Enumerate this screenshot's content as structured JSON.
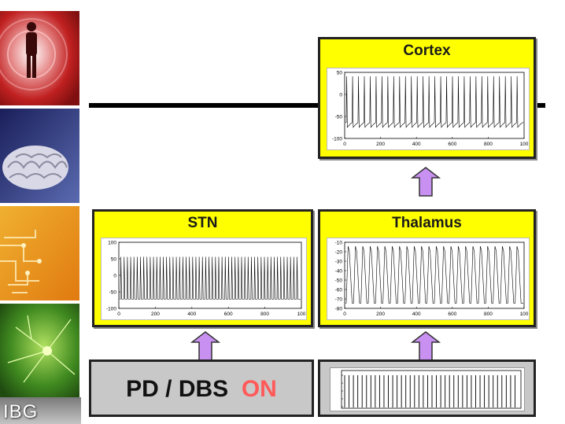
{
  "logo": "IBG",
  "tiles": [
    "person-silhouette",
    "brain",
    "circuit-board",
    "neuron"
  ],
  "boxes": {
    "cortex": {
      "title": "Cortex",
      "yticks": [
        "50",
        "0",
        "-50",
        "-100"
      ],
      "xticks": [
        "0",
        "200",
        "400",
        "600",
        "800",
        "100"
      ]
    },
    "stn": {
      "title": "STN",
      "yticks": [
        "100",
        "50",
        "0",
        "-50",
        "-100"
      ],
      "xticks": [
        "0",
        "200",
        "400",
        "600",
        "800",
        "100"
      ]
    },
    "thalamus": {
      "title": "Thalamus",
      "yticks": [
        "-10",
        "-20",
        "-30",
        "-40",
        "-50",
        "-60",
        "-70",
        "-80"
      ],
      "xticks": [
        "0",
        "200",
        "400",
        "600",
        "800",
        "100"
      ]
    }
  },
  "status": {
    "prefix": "PD / DBS",
    "state": "ON"
  },
  "colors": {
    "box": "#ffff00",
    "arrow": "#c890f0",
    "on": "#ff5a5a",
    "gray": "#c8c8c8"
  }
}
